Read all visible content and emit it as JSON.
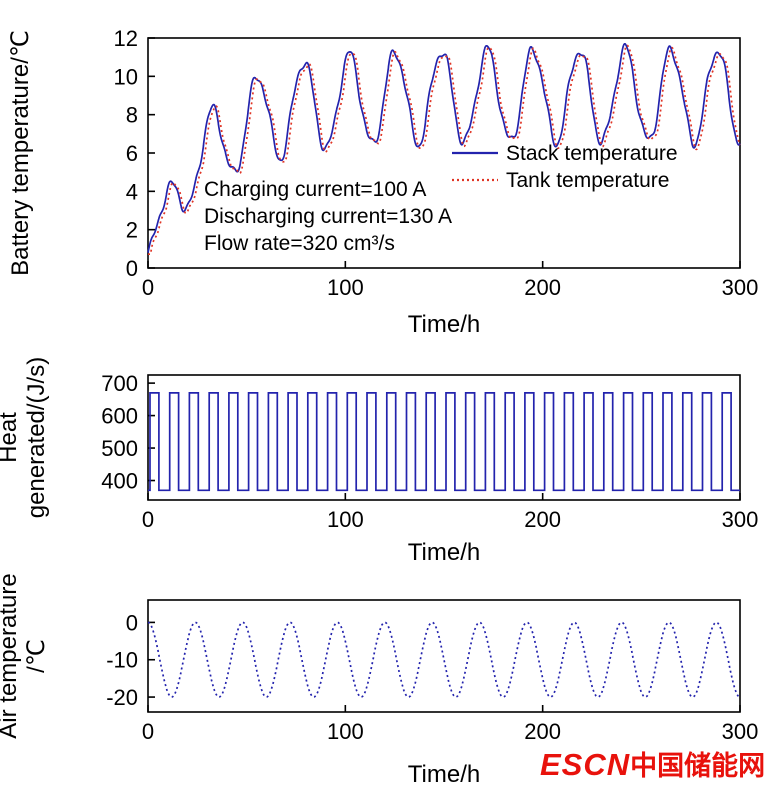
{
  "page": {
    "background": "#ffffff"
  },
  "logo": {
    "escn": "ESCN",
    "cn": "中国储能网",
    "color": "#e8120c"
  },
  "chart_data": [
    {
      "type": "line",
      "title": "",
      "xlabel": "Time/h",
      "ylabel": "Battery temperature/℃",
      "ylabel_lines": [
        "Battery temperature/℃"
      ],
      "xlim": [
        0,
        300
      ],
      "ylim": [
        0,
        12
      ],
      "xticks": [
        0,
        100,
        200,
        300
      ],
      "yticks": [
        0,
        2,
        4,
        6,
        8,
        10,
        12
      ],
      "grid": false,
      "legend_position": "inside-right",
      "annotations": [
        "Charging current=100 A",
        "Discharging current=130 A",
        "Flow rate=320 cm³/s"
      ],
      "series": [
        {
          "name": "Stack temperature",
          "color": "#2323ad",
          "line": "solid",
          "signal": {
            "kind": "battery",
            "start": 0.8,
            "steady_mean": 9.0,
            "rise_tau": 30,
            "osc_amp": 2.4,
            "amp_tau": 18,
            "osc_period": 23.3,
            "osc_phase": 3,
            "ripple_amp": 0.28,
            "ripple_period": 10,
            "ripple2_amp": 0.12,
            "ripple2_period": 4.7,
            "lag": 0,
            "offset": 0
          }
        },
        {
          "name": "Tank temperature",
          "color": "#e03424",
          "line": "dotted",
          "signal": {
            "kind": "battery",
            "start": 0.8,
            "steady_mean": 9.0,
            "rise_tau": 30,
            "osc_amp": 2.4,
            "amp_tau": 18,
            "osc_period": 23.3,
            "osc_phase": 3,
            "ripple_amp": 0.28,
            "ripple_period": 10,
            "ripple2_amp": 0.12,
            "ripple2_period": 4.7,
            "lag": 1.2,
            "offset": -0.08
          }
        }
      ],
      "summary": "Both temperatures rise from about 1 ℃ and settle into a daily oscillation between roughly 6.5 ℃ and 11.5 ℃ over 0–300 h."
    },
    {
      "type": "line",
      "title": "",
      "xlabel": "Time/h",
      "ylabel": "Heat generated/(J/s)",
      "ylabel_lines": [
        "Heat",
        "generated/(J/s)"
      ],
      "xlim": [
        0,
        300
      ],
      "ylim": [
        340,
        725
      ],
      "xticks": [
        0,
        100,
        200,
        300
      ],
      "yticks": [
        400,
        500,
        600,
        700
      ],
      "grid": false,
      "series": [
        {
          "name": "Heat generated",
          "color": "#2323ad",
          "line": "solid",
          "signal": {
            "kind": "square",
            "low": 370,
            "high": 670,
            "period": 10,
            "high_start": 1,
            "high_len": 4.5
          }
        }
      ],
      "summary": "Square wave alternating between about 370 J/s and 670 J/s with a 10 h cycle (30 pulses over 300 h)."
    },
    {
      "type": "line",
      "title": "",
      "xlabel": "Time/h",
      "ylabel": "Air temperature/℃",
      "ylabel_lines": [
        "Air temperature",
        "/℃"
      ],
      "xlim": [
        0,
        300
      ],
      "ylim": [
        -24,
        6
      ],
      "xticks": [
        0,
        100,
        200,
        300
      ],
      "yticks": [
        0,
        -10,
        -20
      ],
      "grid": false,
      "series": [
        {
          "name": "Air temperature",
          "color": "#2323ad",
          "line": "dotted",
          "signal": {
            "kind": "cosine",
            "mean": -10,
            "amp": 10,
            "period": 24,
            "phase": 0
          }
        }
      ],
      "summary": "Sinusoidal daily cycle between 0 ℃ and −20 ℃ with a 24 h period (about 12.5 cycles over 300 h)."
    }
  ]
}
